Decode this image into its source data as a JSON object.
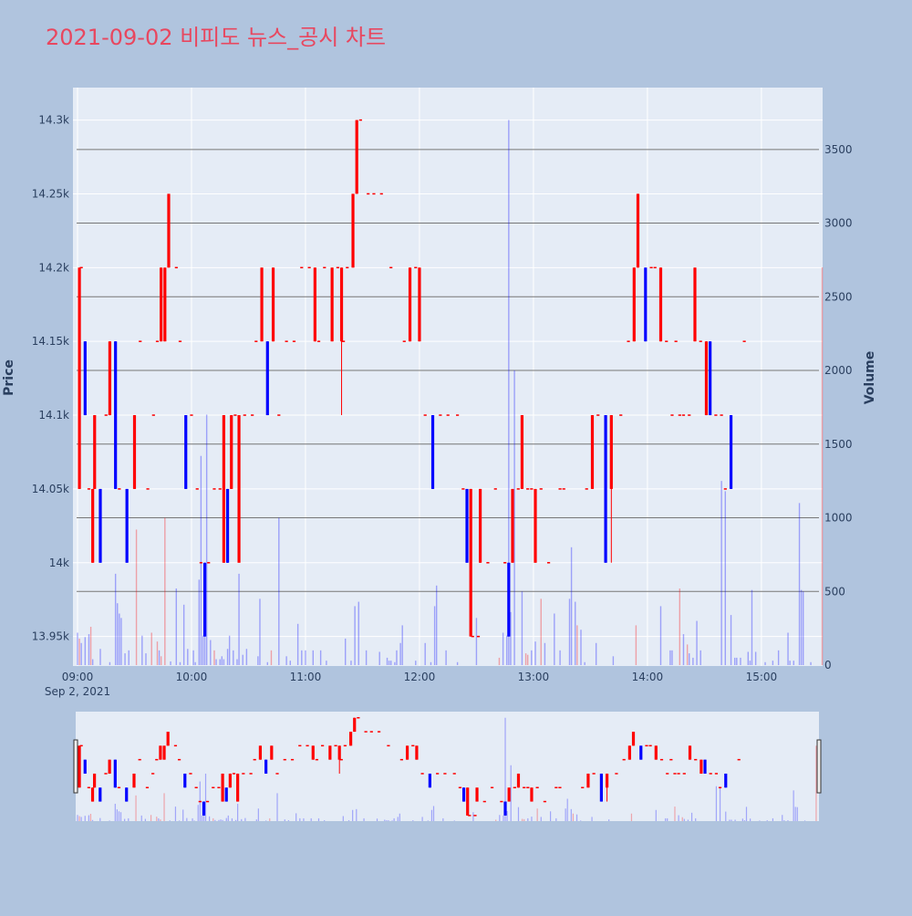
{
  "chart_data": {
    "type": "candlestick",
    "title": "2021-09-02 비피도 뉴스_공시 차트",
    "ylabel_left": "Price",
    "ylabel_right": "Volume",
    "x_date_label": "Sep 2, 2021",
    "x_ticks": [
      "09:00",
      "10:00",
      "11:00",
      "12:00",
      "13:00",
      "14:00",
      "15:00"
    ],
    "y_price_ticks": [
      "13.95k",
      "14k",
      "14.05k",
      "14.1k",
      "14.15k",
      "14.2k",
      "14.25k",
      "14.3k"
    ],
    "y_volume_ticks": [
      "0",
      "500",
      "1000",
      "1500",
      "2000",
      "2500",
      "3000",
      "3500"
    ],
    "price_range": [
      13930,
      14322
    ],
    "volume_range": [
      0,
      3920
    ],
    "x_range_minutes": [
      0,
      393
    ],
    "colors": {
      "up": "#ff0000",
      "down": "#0000ff",
      "background": "#b0c4de",
      "plot_bg": "#e5ecf6",
      "title": "#e8475f"
    },
    "candles": [
      [
        1,
        14050,
        14200,
        14050,
        14200
      ],
      [
        2,
        14200,
        14200,
        14200,
        14200
      ],
      [
        4,
        14150,
        14150,
        14100,
        14100
      ],
      [
        6,
        14050,
        14050,
        14050,
        14050
      ],
      [
        8,
        14000,
        14050,
        14000,
        14050
      ],
      [
        9,
        14050,
        14100,
        14050,
        14100
      ],
      [
        12,
        14050,
        14050,
        14000,
        14000
      ],
      [
        15,
        14100,
        14100,
        14100,
        14100
      ],
      [
        17,
        14100,
        14150,
        14100,
        14150
      ],
      [
        20,
        14150,
        14150,
        14050,
        14050
      ],
      [
        22,
        14050,
        14050,
        14050,
        14050
      ],
      [
        26,
        14050,
        14050,
        14000,
        14000
      ],
      [
        30,
        14050,
        14100,
        14050,
        14100
      ],
      [
        33,
        14150,
        14150,
        14150,
        14150
      ],
      [
        37,
        14050,
        14050,
        14050,
        14050
      ],
      [
        40,
        14100,
        14100,
        14100,
        14100
      ],
      [
        42,
        14150,
        14150,
        14150,
        14150
      ],
      [
        44,
        14150,
        14200,
        14150,
        14200
      ],
      [
        46,
        14150,
        14200,
        14150,
        14200
      ],
      [
        48,
        14200,
        14250,
        14200,
        14250
      ],
      [
        52,
        14200,
        14200,
        14200,
        14200
      ],
      [
        54,
        14150,
        14150,
        14150,
        14150
      ],
      [
        57,
        14100,
        14100,
        14050,
        14050
      ],
      [
        60,
        14100,
        14100,
        14100,
        14100
      ],
      [
        63,
        14050,
        14050,
        14050,
        14050
      ],
      [
        65,
        14000,
        14000,
        14000,
        14000
      ],
      [
        67,
        14000,
        14000,
        13950,
        13950
      ],
      [
        69,
        14000,
        14000,
        14000,
        14000
      ],
      [
        72,
        14050,
        14050,
        14050,
        14050
      ],
      [
        75,
        14050,
        14050,
        14050,
        14050
      ],
      [
        77,
        14000,
        14100,
        14000,
        14100
      ],
      [
        79,
        14050,
        14050,
        14000,
        14000
      ],
      [
        81,
        14050,
        14100,
        14050,
        14100
      ],
      [
        83,
        14100,
        14100,
        14100,
        14100
      ],
      [
        85,
        14000,
        14100,
        14000,
        14100
      ],
      [
        88,
        14100,
        14100,
        14100,
        14100
      ],
      [
        92,
        14100,
        14100,
        14100,
        14100
      ],
      [
        94,
        14150,
        14150,
        14150,
        14150
      ],
      [
        97,
        14150,
        14200,
        14150,
        14200
      ],
      [
        100,
        14150,
        14150,
        14100,
        14100
      ],
      [
        103,
        14150,
        14200,
        14150,
        14200
      ],
      [
        106,
        14100,
        14100,
        14100,
        14100
      ],
      [
        110,
        14150,
        14150,
        14150,
        14150
      ],
      [
        114,
        14150,
        14150,
        14150,
        14150
      ],
      [
        118,
        14200,
        14200,
        14200,
        14200
      ],
      [
        122,
        14200,
        14200,
        14200,
        14200
      ],
      [
        125,
        14150,
        14200,
        14150,
        14200
      ],
      [
        127,
        14150,
        14150,
        14150,
        14150
      ],
      [
        130,
        14200,
        14200,
        14200,
        14200
      ],
      [
        134,
        14150,
        14200,
        14150,
        14200
      ],
      [
        137,
        14200,
        14200,
        14200,
        14200
      ],
      [
        139,
        14150,
        14200,
        14100,
        14200
      ],
      [
        140,
        14150,
        14150,
        14150,
        14150
      ],
      [
        142,
        14200,
        14200,
        14200,
        14200
      ],
      [
        145,
        14200,
        14250,
        14200,
        14250
      ],
      [
        147,
        14250,
        14300,
        14250,
        14300
      ],
      [
        149,
        14300,
        14300,
        14300,
        14300
      ],
      [
        153,
        14250,
        14250,
        14250,
        14250
      ],
      [
        156,
        14250,
        14250,
        14250,
        14250
      ],
      [
        160,
        14250,
        14250,
        14250,
        14250
      ],
      [
        165,
        14200,
        14200,
        14200,
        14200
      ],
      [
        172,
        14150,
        14150,
        14150,
        14150
      ],
      [
        175,
        14150,
        14200,
        14150,
        14200
      ],
      [
        178,
        14200,
        14200,
        14200,
        14200
      ],
      [
        180,
        14150,
        14200,
        14150,
        14200
      ],
      [
        183,
        14100,
        14100,
        14100,
        14100
      ],
      [
        187,
        14100,
        14100,
        14050,
        14050
      ],
      [
        191,
        14100,
        14100,
        14100,
        14100
      ],
      [
        195,
        14100,
        14100,
        14100,
        14100
      ],
      [
        200,
        14100,
        14100,
        14100,
        14100
      ],
      [
        203,
        14050,
        14050,
        14050,
        14050
      ],
      [
        205,
        14050,
        14050,
        14000,
        14000
      ],
      [
        207,
        13950,
        14050,
        13950,
        14050
      ],
      [
        208,
        13950,
        13950,
        13950,
        13950
      ],
      [
        211,
        13950,
        13950,
        13950,
        13950
      ],
      [
        212,
        14000,
        14050,
        14000,
        14050
      ],
      [
        216,
        14000,
        14000,
        14000,
        14000
      ],
      [
        220,
        14050,
        14050,
        14050,
        14050
      ],
      [
        225,
        14000,
        14000,
        14000,
        14000
      ],
      [
        227,
        14000,
        14000,
        13950,
        13950
      ],
      [
        229,
        14000,
        14050,
        14000,
        14050
      ],
      [
        232,
        14050,
        14050,
        14050,
        14050
      ],
      [
        234,
        14050,
        14100,
        14050,
        14100
      ],
      [
        237,
        14050,
        14050,
        14050,
        14050
      ],
      [
        239,
        14050,
        14050,
        14050,
        14050
      ],
      [
        241,
        14000,
        14050,
        14000,
        14050
      ],
      [
        244,
        14050,
        14050,
        14050,
        14050
      ],
      [
        248,
        14000,
        14000,
        14000,
        14000
      ],
      [
        254,
        14050,
        14050,
        14050,
        14050
      ],
      [
        256,
        14050,
        14050,
        14050,
        14050
      ],
      [
        268,
        14050,
        14050,
        14050,
        14050
      ],
      [
        271,
        14050,
        14100,
        14050,
        14100
      ],
      [
        274,
        14100,
        14100,
        14100,
        14100
      ],
      [
        278,
        14100,
        14100,
        14000,
        14000
      ],
      [
        281,
        14050,
        14100,
        14000,
        14100
      ],
      [
        286,
        14100,
        14100,
        14100,
        14100
      ],
      [
        290,
        14150,
        14150,
        14150,
        14150
      ],
      [
        293,
        14150,
        14200,
        14150,
        14200
      ],
      [
        295,
        14200,
        14250,
        14200,
        14250
      ],
      [
        299,
        14200,
        14200,
        14150,
        14150
      ],
      [
        302,
        14200,
        14200,
        14200,
        14200
      ],
      [
        304,
        14200,
        14200,
        14200,
        14200
      ],
      [
        307,
        14150,
        14200,
        14150,
        14200
      ],
      [
        310,
        14150,
        14150,
        14150,
        14150
      ],
      [
        313,
        14100,
        14100,
        14100,
        14100
      ],
      [
        315,
        14150,
        14150,
        14150,
        14150
      ],
      [
        317,
        14100,
        14100,
        14100,
        14100
      ],
      [
        319,
        14100,
        14100,
        14100,
        14100
      ],
      [
        322,
        14100,
        14100,
        14100,
        14100
      ],
      [
        325,
        14150,
        14200,
        14150,
        14200
      ],
      [
        328,
        14150,
        14150,
        14150,
        14150
      ],
      [
        331,
        14100,
        14150,
        14100,
        14150
      ],
      [
        333,
        14150,
        14150,
        14100,
        14100
      ],
      [
        336,
        14100,
        14100,
        14100,
        14100
      ],
      [
        339,
        14100,
        14100,
        14100,
        14100
      ],
      [
        341,
        14050,
        14050,
        14050,
        14050
      ],
      [
        344,
        14100,
        14100,
        14050,
        14050
      ],
      [
        351,
        14150,
        14150,
        14150,
        14150
      ]
    ],
    "volume": [
      [
        0,
        220,
        "down"
      ],
      [
        1,
        180,
        "up"
      ],
      [
        2,
        150,
        "down"
      ],
      [
        4,
        190,
        "down"
      ],
      [
        6,
        210,
        "down"
      ],
      [
        7,
        260,
        "up"
      ],
      [
        8,
        40,
        "down"
      ],
      [
        12,
        110,
        "down"
      ],
      [
        17,
        20,
        "down"
      ],
      [
        20,
        620,
        "down"
      ],
      [
        21,
        420,
        "down"
      ],
      [
        22,
        350,
        "down"
      ],
      [
        23,
        320,
        "down"
      ],
      [
        25,
        80,
        "down"
      ],
      [
        27,
        100,
        "down"
      ],
      [
        31,
        920,
        "up"
      ],
      [
        34,
        200,
        "down"
      ],
      [
        36,
        80,
        "down"
      ],
      [
        39,
        220,
        "up"
      ],
      [
        42,
        160,
        "up"
      ],
      [
        43,
        100,
        "down"
      ],
      [
        44,
        60,
        "up"
      ],
      [
        46,
        1000,
        "up"
      ],
      [
        49,
        25,
        "down"
      ],
      [
        52,
        520,
        "down"
      ],
      [
        54,
        20,
        "down"
      ],
      [
        56,
        410,
        "down"
      ],
      [
        58,
        110,
        "down"
      ],
      [
        61,
        100,
        "down"
      ],
      [
        62,
        20,
        "down"
      ],
      [
        64,
        580,
        "down"
      ],
      [
        65,
        1420,
        "down"
      ],
      [
        66,
        200,
        "down"
      ],
      [
        67,
        300,
        "down"
      ],
      [
        68,
        1700,
        "down"
      ],
      [
        70,
        170,
        "down"
      ],
      [
        72,
        100,
        "up"
      ],
      [
        73,
        40,
        "down"
      ],
      [
        75,
        40,
        "down"
      ],
      [
        76,
        60,
        "down"
      ],
      [
        77,
        40,
        "down"
      ],
      [
        79,
        110,
        "down"
      ],
      [
        80,
        200,
        "down"
      ],
      [
        82,
        100,
        "down"
      ],
      [
        84,
        40,
        "down"
      ],
      [
        85,
        620,
        "down"
      ],
      [
        87,
        70,
        "down"
      ],
      [
        89,
        110,
        "down"
      ],
      [
        95,
        60,
        "down"
      ],
      [
        96,
        450,
        "down"
      ],
      [
        100,
        20,
        "down"
      ],
      [
        102,
        100,
        "up"
      ],
      [
        106,
        1000,
        "down"
      ],
      [
        110,
        60,
        "down"
      ],
      [
        112,
        30,
        "down"
      ],
      [
        116,
        280,
        "down"
      ],
      [
        118,
        100,
        "down"
      ],
      [
        120,
        100,
        "down"
      ],
      [
        124,
        100,
        "down"
      ],
      [
        128,
        100,
        "down"
      ],
      [
        131,
        30,
        "down"
      ],
      [
        141,
        180,
        "down"
      ],
      [
        144,
        30,
        "down"
      ],
      [
        146,
        400,
        "down"
      ],
      [
        148,
        430,
        "down"
      ],
      [
        152,
        100,
        "down"
      ],
      [
        159,
        90,
        "down"
      ],
      [
        163,
        50,
        "down"
      ],
      [
        164,
        30,
        "down"
      ],
      [
        165,
        30,
        "down"
      ],
      [
        167,
        20,
        "down"
      ],
      [
        168,
        100,
        "down"
      ],
      [
        170,
        150,
        "down"
      ],
      [
        171,
        270,
        "down"
      ],
      [
        178,
        30,
        "down"
      ],
      [
        183,
        150,
        "down"
      ],
      [
        186,
        20,
        "down"
      ],
      [
        188,
        400,
        "down"
      ],
      [
        189,
        540,
        "down"
      ],
      [
        194,
        100,
        "down"
      ],
      [
        200,
        20,
        "down"
      ],
      [
        210,
        320,
        "down"
      ],
      [
        222,
        50,
        "up"
      ],
      [
        224,
        220,
        "down"
      ],
      [
        226,
        200,
        "down"
      ],
      [
        227,
        3700,
        "down"
      ],
      [
        228,
        360,
        "down"
      ],
      [
        230,
        2000,
        "down"
      ],
      [
        234,
        500,
        "down"
      ],
      [
        236,
        80,
        "up"
      ],
      [
        237,
        70,
        "up"
      ],
      [
        239,
        100,
        "down"
      ],
      [
        241,
        160,
        "down"
      ],
      [
        244,
        450,
        "up"
      ],
      [
        246,
        150,
        "down"
      ],
      [
        251,
        350,
        "down"
      ],
      [
        254,
        100,
        "down"
      ],
      [
        259,
        450,
        "down"
      ],
      [
        260,
        800,
        "down"
      ],
      [
        262,
        430,
        "down"
      ],
      [
        263,
        270,
        "up"
      ],
      [
        265,
        240,
        "down"
      ],
      [
        267,
        20,
        "down"
      ],
      [
        273,
        150,
        "down"
      ],
      [
        282,
        60,
        "down"
      ],
      [
        294,
        270,
        "up"
      ],
      [
        307,
        400,
        "down"
      ],
      [
        312,
        100,
        "down"
      ],
      [
        313,
        100,
        "down"
      ],
      [
        317,
        520,
        "up"
      ],
      [
        319,
        210,
        "down"
      ],
      [
        321,
        140,
        "up"
      ],
      [
        322,
        80,
        "down"
      ],
      [
        324,
        50,
        "down"
      ],
      [
        326,
        300,
        "down"
      ],
      [
        328,
        100,
        "down"
      ],
      [
        339,
        1250,
        "down"
      ],
      [
        341,
        1180,
        "down"
      ],
      [
        344,
        340,
        "down"
      ],
      [
        346,
        50,
        "down"
      ],
      [
        347,
        50,
        "down"
      ],
      [
        349,
        50,
        "down"
      ],
      [
        353,
        90,
        "down"
      ],
      [
        354,
        30,
        "down"
      ],
      [
        355,
        510,
        "down"
      ],
      [
        357,
        90,
        "down"
      ],
      [
        362,
        20,
        "down"
      ],
      [
        366,
        30,
        "down"
      ],
      [
        369,
        100,
        "down"
      ],
      [
        374,
        220,
        "down"
      ],
      [
        375,
        30,
        "down"
      ],
      [
        377,
        30,
        "down"
      ],
      [
        380,
        1100,
        "down"
      ],
      [
        381,
        510,
        "down"
      ],
      [
        382,
        500,
        "down"
      ],
      [
        386,
        20,
        "down"
      ],
      [
        392,
        2700,
        "up"
      ]
    ],
    "grid": true,
    "range_slider": true
  }
}
